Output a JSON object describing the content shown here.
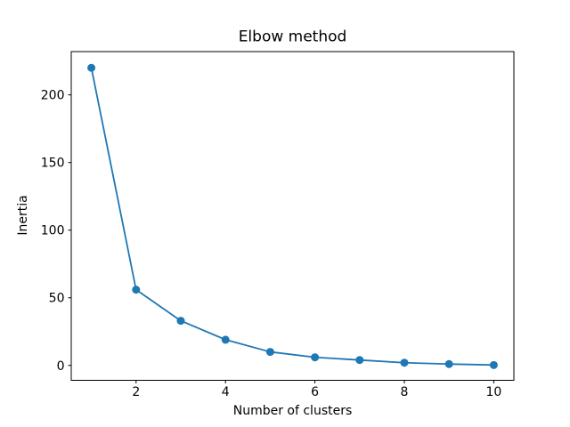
{
  "figure": {
    "background": "#ffffff",
    "spine_color": "#000000",
    "text_color": "#000000"
  },
  "chart_data": {
    "type": "line",
    "title": "Elbow method",
    "xlabel": "Number of clusters",
    "ylabel": "Inertia",
    "x": [
      1,
      2,
      3,
      4,
      5,
      6,
      7,
      8,
      9,
      10
    ],
    "values": [
      220,
      56,
      33,
      19,
      10,
      6,
      4,
      2,
      1,
      0.3
    ],
    "series_name": "inertia",
    "line_color": "#1f77b4",
    "marker": "circle",
    "marker_color": "#1f77b4",
    "xlim": [
      0.55,
      10.45
    ],
    "ylim": [
      -11,
      232
    ],
    "x_ticks": [
      2,
      4,
      6,
      8,
      10
    ],
    "y_ticks": [
      0,
      50,
      100,
      150,
      200
    ],
    "grid": false,
    "legend": false
  }
}
